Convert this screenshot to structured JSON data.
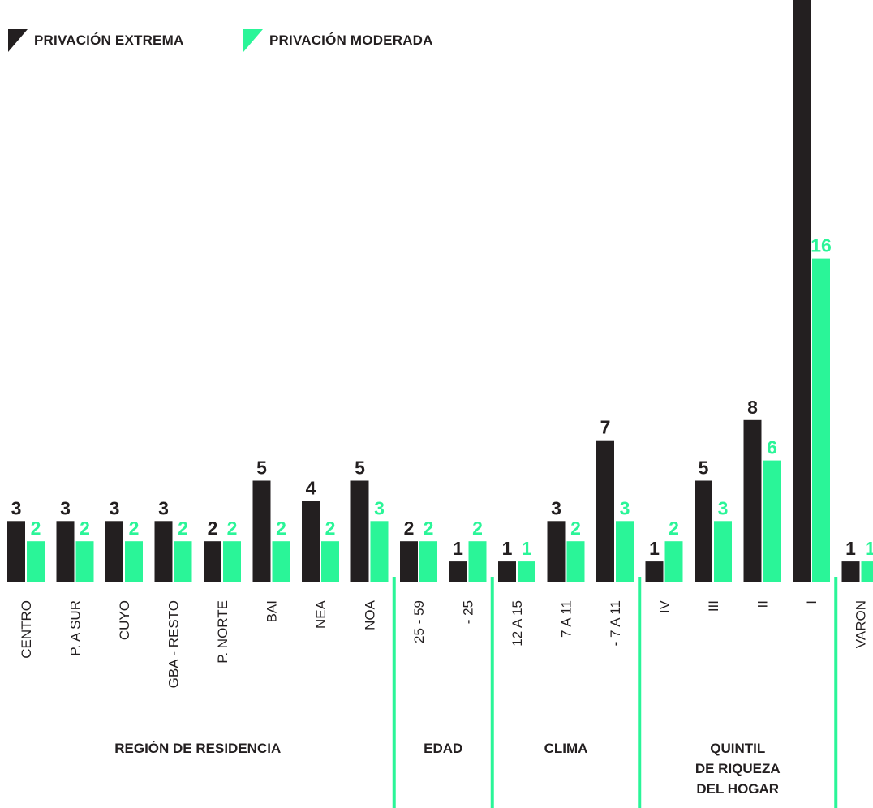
{
  "colors": {
    "extreme": "#231f20",
    "moderate": "#2af598",
    "background": "#ffffff"
  },
  "legend": {
    "extreme_label": "PRIVACIÓN EXTREMA",
    "moderate_label": "PRIVACIÓN MODERADA"
  },
  "chart_data": {
    "type": "bar",
    "categories": [
      "CENTRO",
      "P. A SUR",
      "CUYO",
      "GBA - RESTO",
      "P. NORTE",
      "BAI",
      "NEA",
      "NOA",
      "25 - 59",
      "- 25",
      "12 A 15",
      "7 A 11",
      "- 7 A 11",
      "IV",
      "III",
      "II",
      "I",
      "VARON"
    ],
    "series": [
      {
        "name": "PRIVACIÓN EXTREMA",
        "values": [
          3,
          3,
          3,
          3,
          2,
          5,
          4,
          5,
          2,
          1,
          1,
          3,
          7,
          1,
          5,
          8,
          29,
          1
        ]
      },
      {
        "name": "PRIVACIÓN MODERADA",
        "values": [
          2,
          2,
          2,
          2,
          2,
          2,
          2,
          3,
          2,
          2,
          1,
          2,
          3,
          2,
          3,
          6,
          16,
          1
        ]
      }
    ],
    "groups": [
      {
        "label": "REGIÓN DE RESIDENCIA",
        "categories": [
          "CENTRO",
          "P. A SUR",
          "CUYO",
          "GBA - RESTO",
          "P. NORTE",
          "BAI",
          "NEA",
          "NOA"
        ]
      },
      {
        "label": "EDAD",
        "categories": [
          "25 - 59",
          "- 25"
        ]
      },
      {
        "label": "CLIMA",
        "categories": [
          "12 A 15",
          "7 A 11",
          "- 7 A 11"
        ]
      },
      {
        "label": "QUINTIL DE RIQUEZA DEL HOGAR",
        "categories": [
          "IV",
          "III",
          "II",
          "I"
        ]
      },
      {
        "label": "",
        "categories": [
          "VARON"
        ]
      }
    ],
    "grid": false,
    "legend_position": "top-left",
    "value_labels": true
  }
}
